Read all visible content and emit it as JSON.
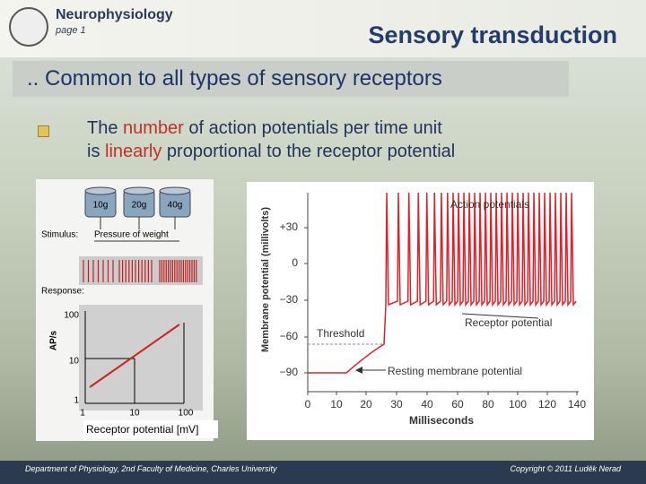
{
  "header": {
    "course": "Neurophysiology",
    "page": "page 1",
    "title": "Sensory transduction"
  },
  "subtitle": ".. Common to all types of sensory receptors",
  "bullet": [
    {
      "text": "The ",
      "emphasis": false
    },
    {
      "text": "number",
      "emphasis": true
    },
    {
      "text": " of action potentials per time unit",
      "emphasis": false
    },
    {
      "text": "is ",
      "emphasis": false
    },
    {
      "text": "linearly",
      "emphasis": true
    },
    {
      "text": " proportional to the receptor potential",
      "emphasis": false
    }
  ],
  "left_figure": {
    "weights": [
      "10g",
      "20g",
      "40g"
    ],
    "stimulus_label": "Stimulus:",
    "stimulus": "Pressure of weight",
    "response_label": "Response:",
    "y_label": "AP/s",
    "y_ticks": [
      "100",
      "10",
      "1"
    ],
    "x_ticks": [
      "1",
      "10",
      "100"
    ],
    "caption": "Receptor potential [mV]"
  },
  "right_figure": {
    "y_label": "Membrane potential (millivolts)",
    "y_ticks": [
      "+30",
      "0",
      "−30",
      "−60",
      "−90"
    ],
    "x_label": "Milliseconds",
    "x_ticks": [
      "0",
      "10",
      "20",
      "30",
      "40",
      "60",
      "80",
      "100",
      "120",
      "140"
    ],
    "annotations": {
      "action": "Action potentials",
      "threshold": "Threshold",
      "receptor": "Receptor potential",
      "resting": "Resting membrane potential"
    }
  },
  "footer": {
    "left": "Department of Physiology, 2nd Faculty of Medicine, Charles University",
    "right": "Copyright © 2011 Luděk Nerad"
  }
}
